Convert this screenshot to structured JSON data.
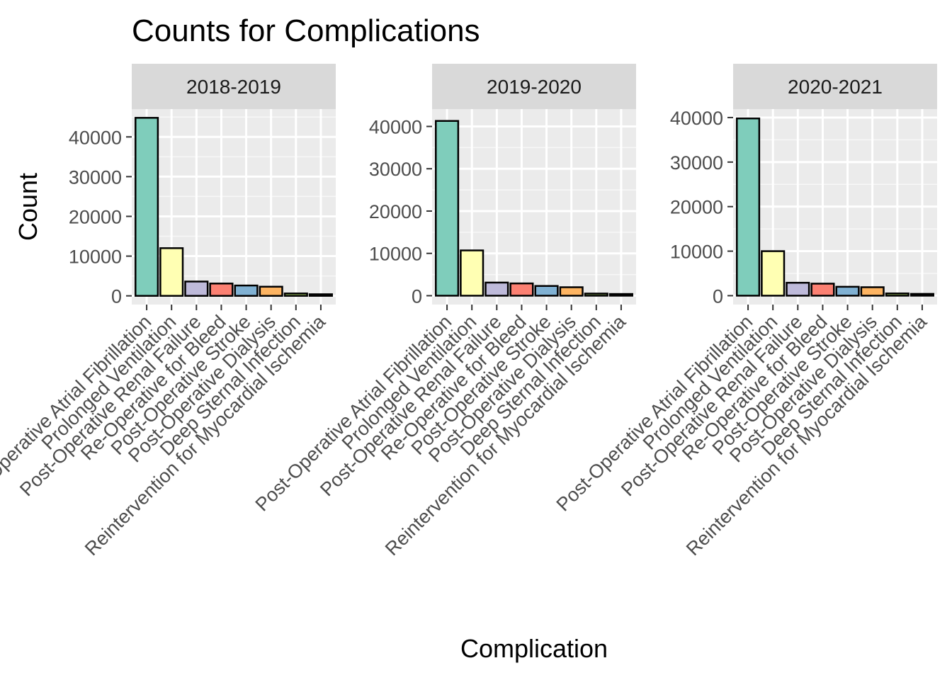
{
  "chart_data": {
    "type": "bar",
    "title": "Counts for Complications",
    "xlabel": "Complication",
    "ylabel": "Count",
    "categories": [
      "Post-Operative Atrial Fibrillation",
      "Prolonged Ventilation",
      "Post-Operative Renal Failure",
      "Re-Operative for Bleed",
      "Post-Operative Stroke",
      "Post-Operative Dialysis",
      "Deep Sternal Infection",
      "Reintervention for Myocardial Ischemia"
    ],
    "colors": [
      "#7FCDBB",
      "#FFFFB3",
      "#BEBADA",
      "#FB8072",
      "#80B1D3",
      "#FDB462",
      "#B3DE69",
      "#FCCDE5"
    ],
    "facets": [
      {
        "label": "2018-2019",
        "values": [
          44800,
          12000,
          3600,
          3100,
          2600,
          2300,
          600,
          400
        ],
        "ylim": [
          -2200,
          47000
        ],
        "yticks": [
          0,
          10000,
          20000,
          30000,
          40000
        ]
      },
      {
        "label": "2019-2020",
        "values": [
          41300,
          10700,
          3100,
          2900,
          2300,
          2000,
          500,
          400
        ],
        "ylim": [
          -2100,
          44100
        ],
        "yticks": [
          0,
          10000,
          20000,
          30000,
          40000
        ]
      },
      {
        "label": "2020-2021",
        "values": [
          39800,
          10000,
          2900,
          2700,
          2000,
          1900,
          500,
          400
        ],
        "ylim": [
          -2000,
          41900
        ],
        "yticks": [
          0,
          10000,
          20000,
          30000,
          40000
        ]
      }
    ]
  }
}
